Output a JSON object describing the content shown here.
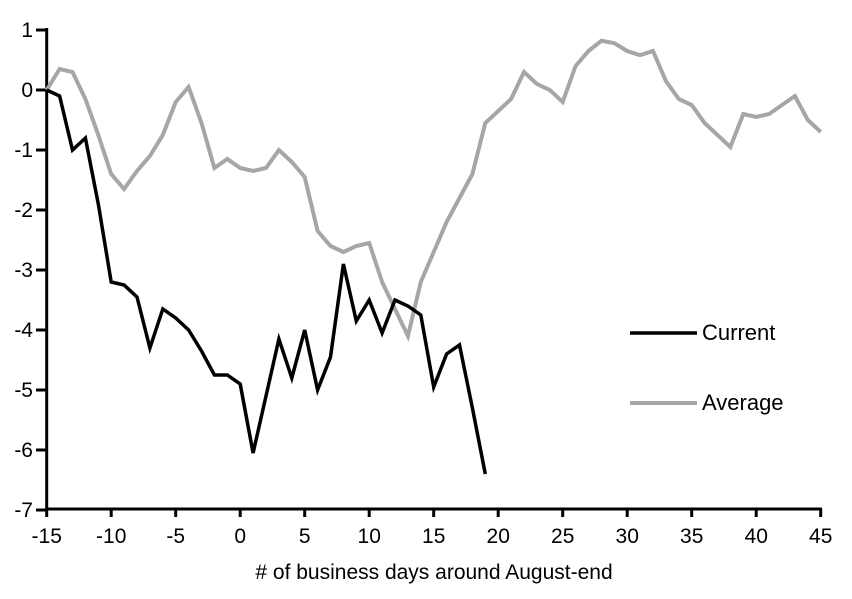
{
  "chart_data": {
    "type": "line",
    "title": "",
    "xlabel": "# of business days around August-end",
    "ylabel": "",
    "xlim": [
      -15,
      45
    ],
    "ylim": [
      -7,
      1
    ],
    "x_ticks": [
      -15,
      -10,
      -5,
      0,
      5,
      10,
      15,
      20,
      25,
      30,
      35,
      40,
      45
    ],
    "y_ticks": [
      1,
      0,
      -1,
      -2,
      -3,
      -4,
      -5,
      -6,
      -7
    ],
    "grid": false,
    "legend_position": "inside-right",
    "series": [
      {
        "name": "Current",
        "color": "#000000",
        "x": [
          -15,
          -14,
          -13,
          -12,
          -11,
          -10,
          -9,
          -8,
          -7,
          -6,
          -5,
          -4,
          -3,
          -2,
          -1,
          0,
          1,
          2,
          3,
          4,
          5,
          6,
          7,
          8,
          9,
          10,
          11,
          12,
          13,
          14,
          15,
          16,
          17,
          18,
          19
        ],
        "values": [
          0.0,
          -0.1,
          -1.0,
          -0.8,
          -1.9,
          -3.2,
          -3.25,
          -3.45,
          -4.3,
          -3.65,
          -3.8,
          -4.0,
          -4.35,
          -4.75,
          -4.75,
          -4.9,
          -6.05,
          -5.1,
          -4.15,
          -4.8,
          -4.0,
          -5.0,
          -4.45,
          -2.9,
          -3.85,
          -3.5,
          -4.05,
          -3.5,
          -3.6,
          -3.75,
          -4.95,
          -4.4,
          -4.25,
          -5.3,
          -6.4
        ]
      },
      {
        "name": "Average",
        "color": "#a6a6a6",
        "x": [
          -15,
          -14,
          -13,
          -12,
          -11,
          -10,
          -9,
          -8,
          -7,
          -6,
          -5,
          -4,
          -3,
          -2,
          -1,
          0,
          1,
          2,
          3,
          4,
          5,
          6,
          7,
          8,
          9,
          10,
          11,
          12,
          13,
          14,
          15,
          16,
          17,
          18,
          19,
          20,
          21,
          22,
          23,
          24,
          25,
          26,
          27,
          28,
          29,
          30,
          31,
          32,
          33,
          34,
          35,
          36,
          37,
          38,
          39,
          40,
          41,
          42,
          43,
          44,
          45
        ],
        "values": [
          0.0,
          0.35,
          0.3,
          -0.15,
          -0.75,
          -1.4,
          -1.65,
          -1.35,
          -1.1,
          -0.75,
          -0.2,
          0.05,
          -0.55,
          -1.3,
          -1.15,
          -1.3,
          -1.35,
          -1.3,
          -1.0,
          -1.2,
          -1.45,
          -2.35,
          -2.6,
          -2.7,
          -2.6,
          -2.55,
          -3.2,
          -3.65,
          -4.1,
          -3.2,
          -2.7,
          -2.2,
          -1.8,
          -1.4,
          -0.55,
          -0.35,
          -0.15,
          0.3,
          0.1,
          0.0,
          -0.2,
          0.4,
          0.65,
          0.82,
          0.78,
          0.65,
          0.58,
          0.65,
          0.15,
          -0.15,
          -0.25,
          -0.55,
          -0.75,
          -0.95,
          -0.4,
          -0.45,
          -0.4,
          -0.25,
          -0.1,
          -0.5,
          -0.7
        ]
      }
    ]
  },
  "legend": {
    "items": [
      {
        "label": "Current",
        "color": "#000000"
      },
      {
        "label": "Average",
        "color": "#a6a6a6"
      }
    ]
  },
  "colors": {
    "axis": "#000000",
    "text": "#000000",
    "background": "#ffffff"
  }
}
